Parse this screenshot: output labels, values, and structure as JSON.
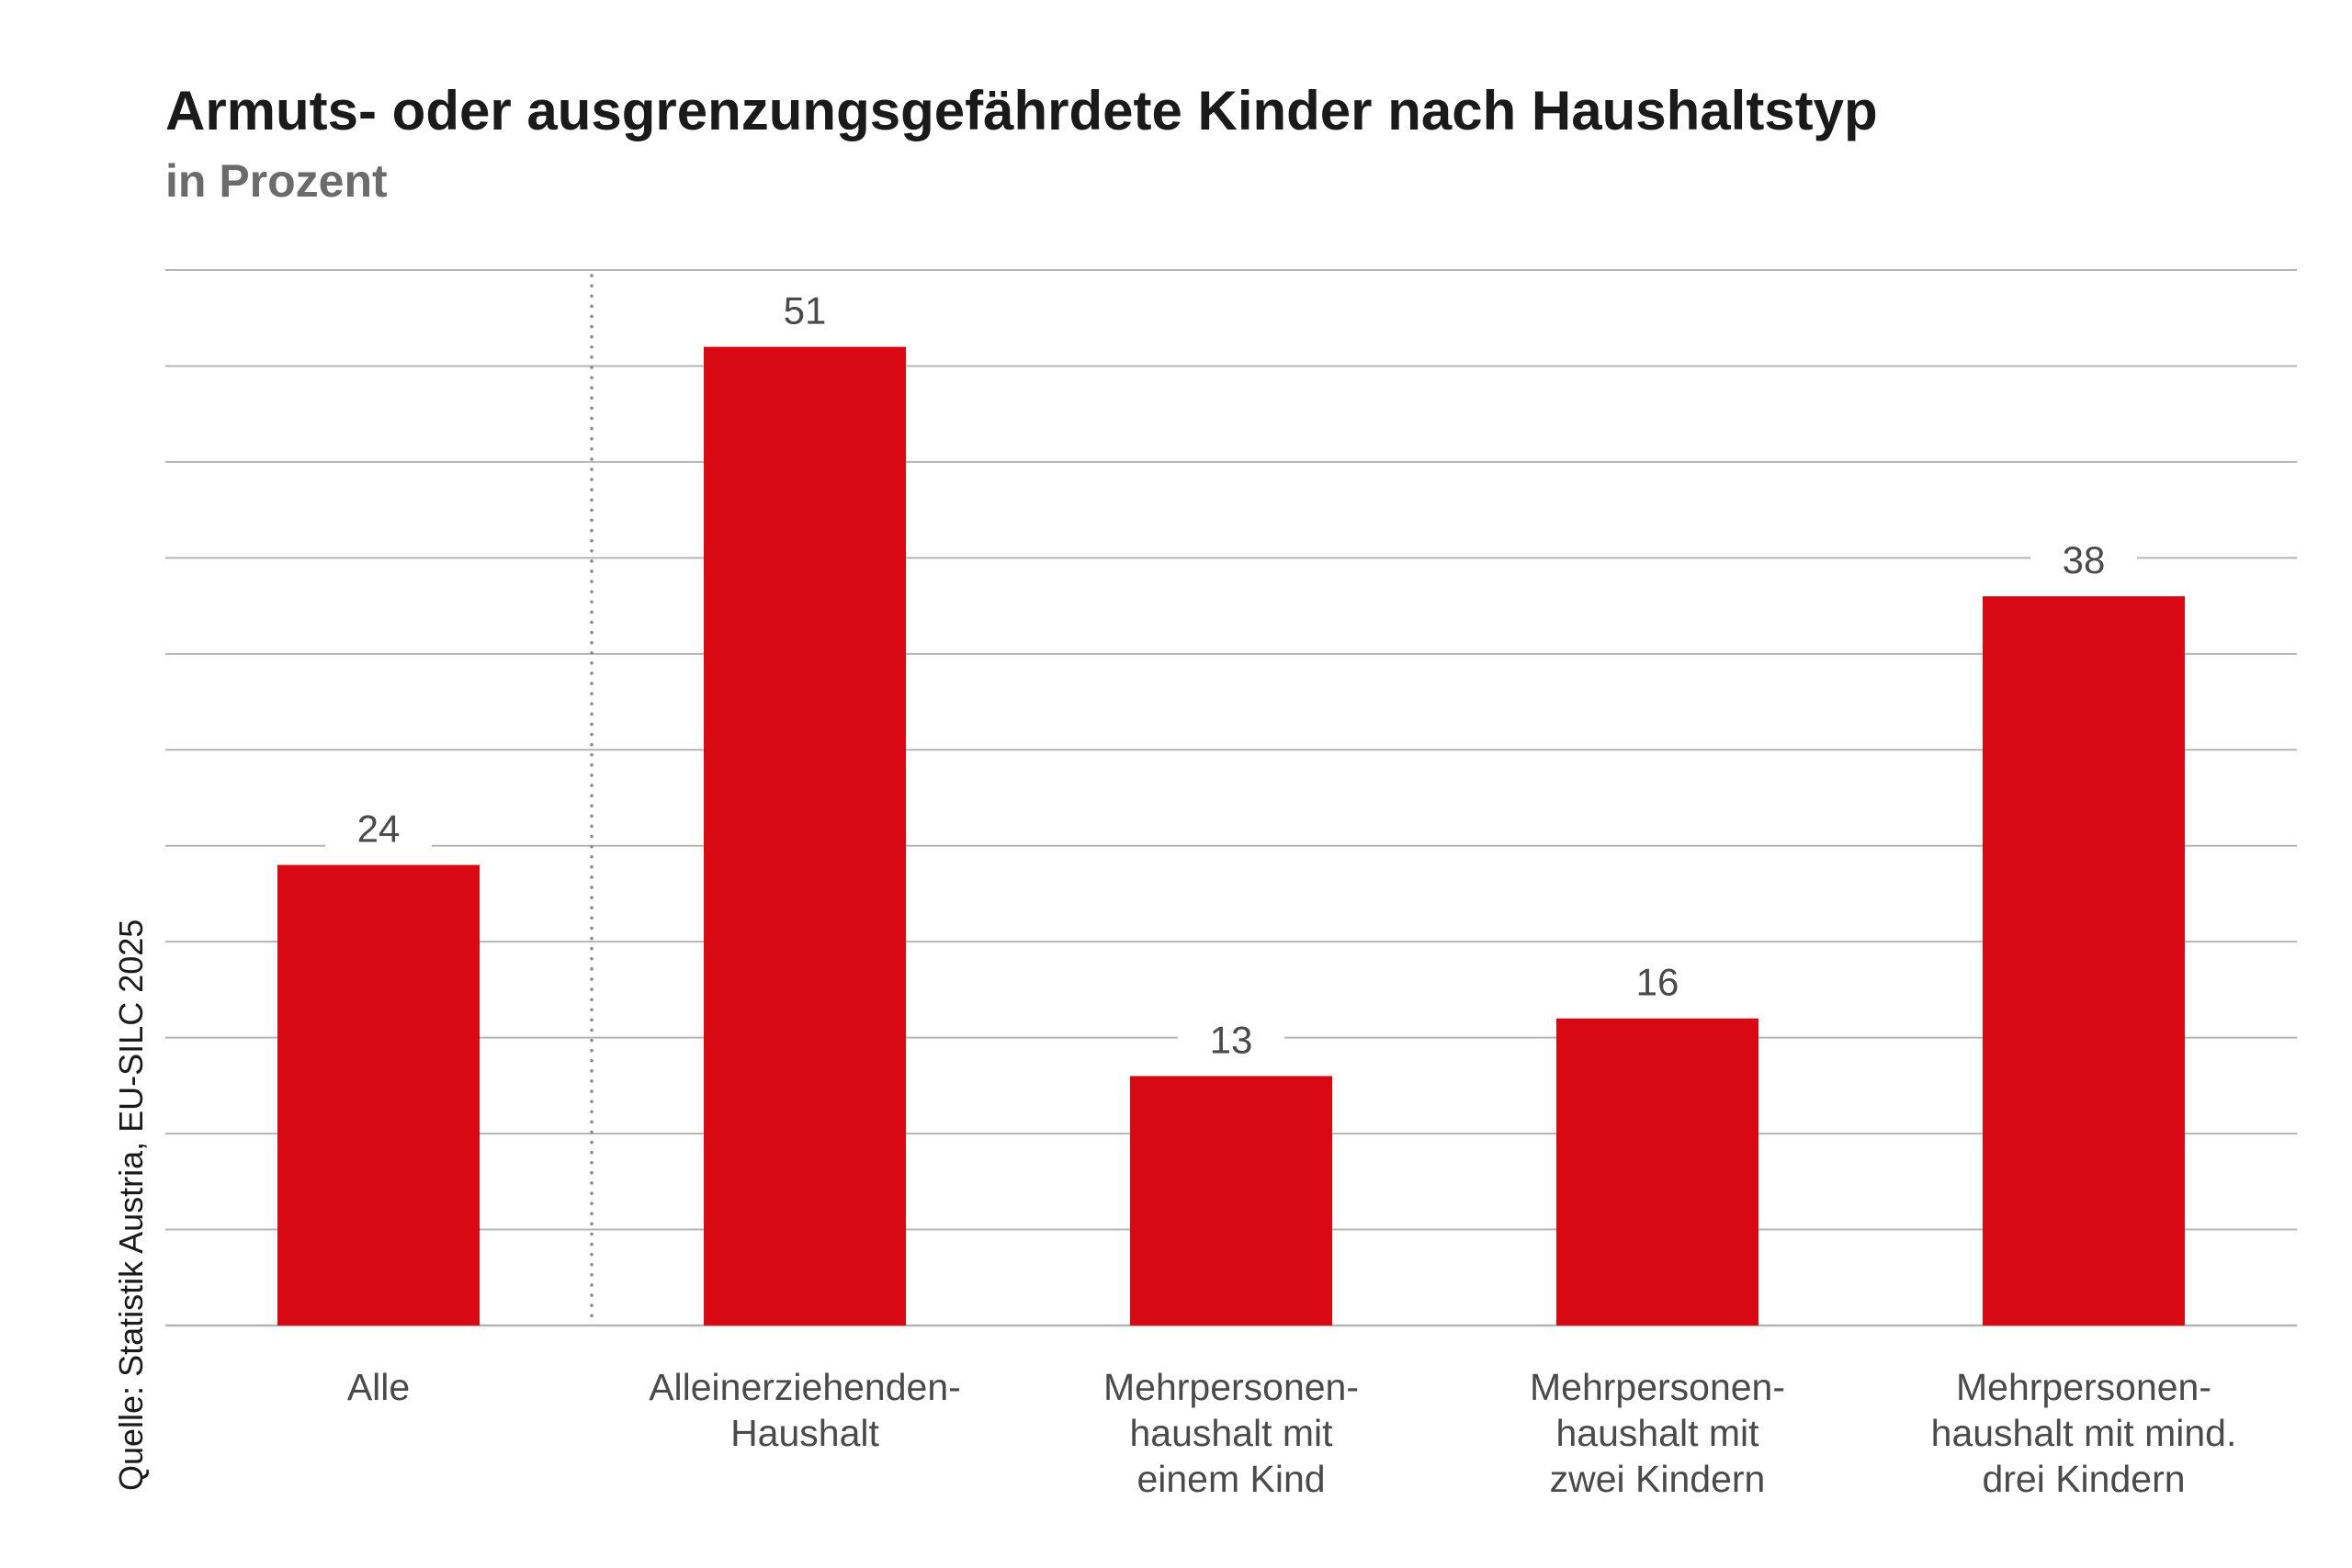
{
  "header": {
    "title": "Armuts- oder ausgrenzungsgefährdete Kinder nach Haushaltstyp",
    "subtitle": "in Prozent"
  },
  "source": "Quelle: Statistik Austria, EU-SILC 2025",
  "chart_data": {
    "type": "bar",
    "title": "Armuts- oder ausgrenzungsgefährdete Kinder nach Haushaltstyp",
    "subtitle": "in Prozent",
    "categories": [
      [
        "Alle"
      ],
      [
        "Alleinerziehenden-",
        "Haushalt"
      ],
      [
        "Mehrpersonen-",
        "haushalt mit",
        "einem Kind"
      ],
      [
        "Mehrpersonen-",
        "haushalt mit",
        "zwei Kindern"
      ],
      [
        "Mehrpersonen-",
        "haushalt mit mind.",
        "drei Kindern"
      ]
    ],
    "values": [
      24,
      51,
      13,
      16,
      38
    ],
    "ylim": [
      0,
      55
    ],
    "y_grid_step": 5,
    "grid": true,
    "separator_after_first": true,
    "colors": {
      "bar": "#d90913",
      "grid": "#b5b5b5",
      "text": "#4a4a4a"
    }
  }
}
